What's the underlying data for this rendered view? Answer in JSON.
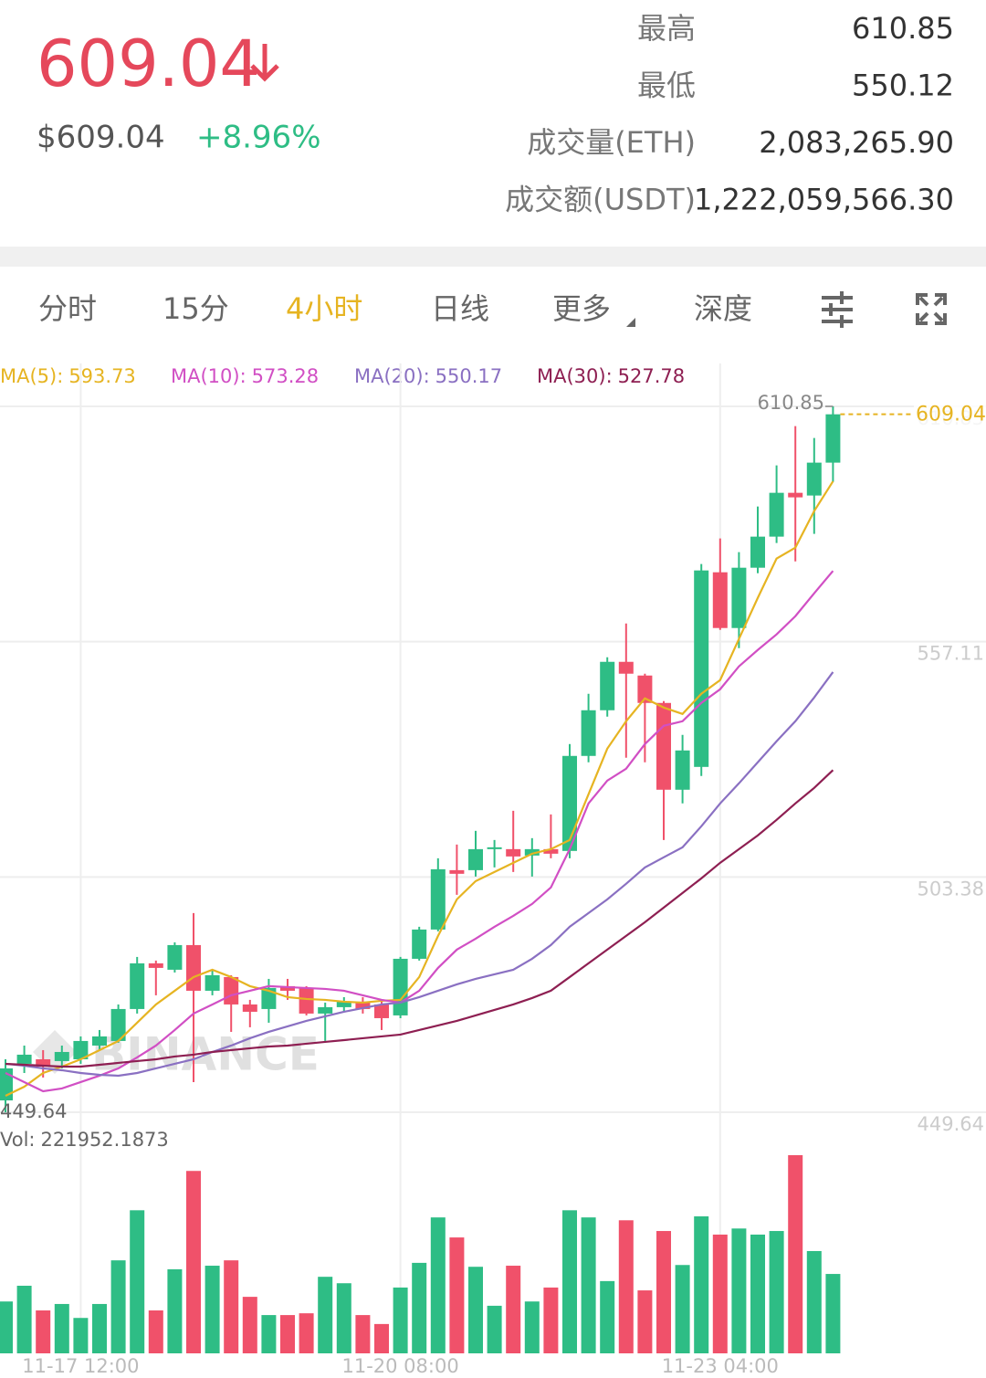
{
  "header": {
    "price": "609.04",
    "price_usd": "$609.04",
    "change": "+8.96%",
    "stats": [
      {
        "label": "最高",
        "value": "610.85"
      },
      {
        "label": "最低",
        "value": "550.12"
      },
      {
        "label": "成交量(ETH)",
        "value": "2,083,265.90"
      },
      {
        "label": "成交额(USDT)",
        "value": "1,222,059,566.30"
      }
    ]
  },
  "tabs": [
    "分时",
    "15分",
    "4小时",
    "日线",
    "更多",
    "深度"
  ],
  "chart_data": {
    "type": "candlestick",
    "categories": [
      null,
      null,
      null,
      null,
      "11-17 12:00",
      null,
      null,
      null,
      null,
      null,
      null,
      null,
      null,
      null,
      null,
      null,
      null,
      null,
      null,
      null,
      null,
      "11-20 08:00",
      null,
      null,
      null,
      null,
      null,
      null,
      null,
      null,
      null,
      null,
      null,
      null,
      null,
      null,
      null,
      null,
      "11-23 04:00",
      null,
      null,
      null,
      null,
      null,
      null
    ],
    "open": [
      452.35,
      460.7,
      461.74,
      461.33,
      461.74,
      464.87,
      465.92,
      473.22,
      483.65,
      482.19,
      487.82,
      477.39,
      480.52,
      474.26,
      473.22,
      478.44,
      478.02,
      472.18,
      473.64,
      474.89,
      474.26,
      471.76,
      484.69,
      491.37,
      504.93,
      504.93,
      509.73,
      509.73,
      508.27,
      509.73,
      509.32,
      531.02,
      541.45,
      552.51,
      549.38,
      543.12,
      523.3,
      528.51,
      572.96,
      560.23,
      574.0,
      581.1,
      591.11,
      590.49,
      598.0
    ],
    "high": [
      461.74,
      464.87,
      463.83,
      464.87,
      466.96,
      468.42,
      474.26,
      485.11,
      484.28,
      488.45,
      495.13,
      482.19,
      480.94,
      475.31,
      480.1,
      480.1,
      478.44,
      474.68,
      475.93,
      475.93,
      475.31,
      485.11,
      492.0,
      507.65,
      510.78,
      513.91,
      511.82,
      518.5,
      512.24,
      517.66,
      533.73,
      545.21,
      553.55,
      561.27,
      549.8,
      543.54,
      535.82,
      574.84,
      580.68,
      577.55,
      587.98,
      597.37,
      606.34,
      603.63,
      610.85
    ],
    "low": [
      449.64,
      458.61,
      457.57,
      459.66,
      460.7,
      463.83,
      465.5,
      472.18,
      476.35,
      481.56,
      456.53,
      476.35,
      468.0,
      469.05,
      470.09,
      475.31,
      471.76,
      465.92,
      472.59,
      472.18,
      468.42,
      471.13,
      484.28,
      490.96,
      499.3,
      503.47,
      505.56,
      504.52,
      503.47,
      507.65,
      507.65,
      529.56,
      539.99,
      530.6,
      529.56,
      511.82,
      520.17,
      526.43,
      559.81,
      555.64,
      572.75,
      579.64,
      575.46,
      581.72,
      593.62
    ],
    "close": [
      459.66,
      462.79,
      460.07,
      463.41,
      465.92,
      466.96,
      473.22,
      483.65,
      482.61,
      487.82,
      477.39,
      480.94,
      474.26,
      472.59,
      478.02,
      477.39,
      472.18,
      473.64,
      474.89,
      473.22,
      471.13,
      484.69,
      491.37,
      505.14,
      504.1,
      509.73,
      510.15,
      508.06,
      509.73,
      508.69,
      531.02,
      541.45,
      552.51,
      549.8,
      543.12,
      523.3,
      532.27,
      573.38,
      560.23,
      574.0,
      581.1,
      591.11,
      590.07,
      598.0,
      609.04
    ],
    "up_color": "#2ebd85",
    "down_color": "#f0516a",
    "ylim": [
      449.64,
      610.85
    ],
    "yticks": [
      449.64,
      503.38,
      557.11,
      610.85
    ],
    "grid": true,
    "series": [
      {
        "name": "MA(5):",
        "color": "#e6b422",
        "values": [
          453.4,
          455.48,
          458.61,
          460.07,
          461.74,
          463.83,
          465.92,
          470.09,
          474.26,
          477.39,
          480.52,
          482.19,
          480.52,
          478.44,
          477.39,
          475.93,
          475.51,
          475.31,
          474.89,
          474.68,
          475.1,
          475.31,
          480.52,
          489.91,
          498.26,
          502.43,
          504.52,
          506.61,
          508.69,
          509.73,
          511.82,
          522.25,
          532.69,
          538.95,
          544.16,
          542.07,
          540.61,
          545.21,
          548.34,
          557.73,
          567.11,
          576.09,
          578.59,
          586.94,
          593.73
        ]
      },
      {
        "name": "MA(10):",
        "color": "#d14fc4",
        "values": [
          458.61,
          456.53,
          454.44,
          455.07,
          456.53,
          458.0,
          459.66,
          462.16,
          464.87,
          468.42,
          472.18,
          474.26,
          476.35,
          477.39,
          478.44,
          478.23,
          478.02,
          477.81,
          477.39,
          476.35,
          475.31,
          474.68,
          477.39,
          482.61,
          486.78,
          489.28,
          491.99,
          494.5,
          497.21,
          500.97,
          509.73,
          520.17,
          525.38,
          528.09,
          533.73,
          537.9,
          538.95,
          543.12,
          546.25,
          551.47,
          555.22,
          558.77,
          562.94,
          568.16,
          573.28
        ]
      },
      {
        "name": "MA(20):",
        "color": "#8a70c2",
        "values": [
          460.7,
          460.28,
          459.66,
          459.24,
          458.61,
          458.19,
          457.99,
          458.61,
          459.66,
          460.7,
          461.74,
          463.41,
          464.87,
          466.54,
          468.0,
          469.25,
          470.51,
          471.55,
          472.59,
          473.43,
          474.26,
          474.68,
          475.93,
          477.39,
          478.85,
          480.1,
          481.15,
          482.19,
          484.69,
          487.82,
          492.0,
          495.13,
          498.26,
          501.81,
          505.56,
          507.86,
          510.15,
          514.95,
          520.17,
          524.76,
          529.56,
          534.36,
          538.95,
          544.37,
          550.17
        ]
      },
      {
        "name": "MA(30):",
        "color": "#8e1f52",
        "values": [
          460.7,
          460.49,
          460.28,
          460.07,
          460.07,
          460.49,
          460.91,
          461.33,
          461.74,
          462.37,
          462.79,
          463.41,
          463.83,
          464.25,
          464.66,
          464.87,
          465.29,
          465.71,
          466.12,
          466.54,
          466.96,
          467.38,
          468.42,
          469.46,
          470.51,
          471.76,
          473.01,
          474.26,
          475.72,
          477.39,
          480.52,
          483.65,
          486.78,
          489.91,
          493.04,
          496.38,
          499.72,
          503.06,
          506.61,
          509.73,
          512.86,
          516.41,
          520.17,
          523.71,
          527.78
        ]
      }
    ],
    "last_price": 609.04,
    "high_marker": 610.85,
    "low_marker": 449.64,
    "volume": {
      "label": "Vol:",
      "values": [
        145000,
        189000,
        120000,
        138000,
        99000,
        138000,
        260000,
        400000,
        120000,
        235000,
        510000,
        245000,
        260000,
        158000,
        107000,
        107000,
        112000,
        214000,
        196000,
        107000,
        82000,
        184000,
        253000,
        380000,
        324000,
        242000,
        133000,
        245000,
        145000,
        184000,
        400000,
        380000,
        202000,
        372000,
        176000,
        342000,
        247000,
        383000,
        332000,
        349000,
        332000,
        342000,
        554000,
        286000,
        221952.1873
      ]
    },
    "watermark": "BINANCE"
  }
}
